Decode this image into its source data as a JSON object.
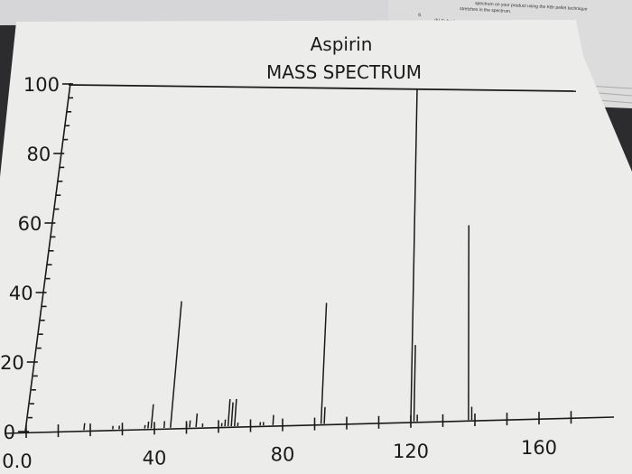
{
  "background_notes": [
    "spectrum on your product using the KBr pellet technique",
    "stretches in the spectrum.",
    "9.",
    "(b) Submit"
  ],
  "colors": {
    "paper": "#ececea",
    "desk": "#2c2c2e",
    "ink": "#1a1a1a"
  },
  "chart_data": {
    "type": "bar",
    "title": "Aspirin",
    "subtitle": "MASS SPECTRUM",
    "xlabel": "",
    "ylabel": "",
    "xlim": [
      0,
      175
    ],
    "ylim": [
      0,
      100
    ],
    "grid": false,
    "legend": "none",
    "x_tick_labels": [
      {
        "value": 0,
        "label": "0.0"
      },
      {
        "value": 40,
        "label": "40"
      },
      {
        "value": 80,
        "label": "80"
      },
      {
        "value": 120,
        "label": "120"
      },
      {
        "value": 160,
        "label": "160"
      }
    ],
    "y_tick_labels": [
      {
        "value": 0,
        "label": "0"
      },
      {
        "value": 20,
        "label": "20"
      },
      {
        "value": 40,
        "label": "40"
      },
      {
        "value": 60,
        "label": "60"
      },
      {
        "value": 80,
        "label": "80"
      },
      {
        "value": 100,
        "label": "100"
      }
    ],
    "x_major_ticks": [
      0,
      10,
      20,
      30,
      40,
      50,
      60,
      70,
      80,
      90,
      100,
      110,
      120,
      130,
      140,
      150,
      160,
      170
    ],
    "y_minor_ticks": [
      4,
      8,
      12,
      16,
      24,
      28,
      32,
      36,
      44,
      48,
      52,
      56,
      64,
      68,
      72,
      76,
      84,
      88,
      92,
      96
    ],
    "peaks": [
      {
        "mz": 18,
        "intensity": 2
      },
      {
        "mz": 27,
        "intensity": 1
      },
      {
        "mz": 29,
        "intensity": 1
      },
      {
        "mz": 37,
        "intensity": 1
      },
      {
        "mz": 38,
        "intensity": 2
      },
      {
        "mz": 39,
        "intensity": 7
      },
      {
        "mz": 43,
        "intensity": 2
      },
      {
        "mz": 45,
        "intensity": 37
      },
      {
        "mz": 50,
        "intensity": 1
      },
      {
        "mz": 51,
        "intensity": 2
      },
      {
        "mz": 53,
        "intensity": 4
      },
      {
        "mz": 55,
        "intensity": 1
      },
      {
        "mz": 61,
        "intensity": 1
      },
      {
        "mz": 62,
        "intensity": 2
      },
      {
        "mz": 63,
        "intensity": 8
      },
      {
        "mz": 64,
        "intensity": 7
      },
      {
        "mz": 65,
        "intensity": 8
      },
      {
        "mz": 66,
        "intensity": 1
      },
      {
        "mz": 73,
        "intensity": 1
      },
      {
        "mz": 74,
        "intensity": 1
      },
      {
        "mz": 77,
        "intensity": 3
      },
      {
        "mz": 92,
        "intensity": 36
      },
      {
        "mz": 93,
        "intensity": 5
      },
      {
        "mz": 120,
        "intensity": 100
      },
      {
        "mz": 121,
        "intensity": 23
      },
      {
        "mz": 122,
        "intensity": 2
      },
      {
        "mz": 138,
        "intensity": 59
      },
      {
        "mz": 139,
        "intensity": 4
      }
    ]
  }
}
